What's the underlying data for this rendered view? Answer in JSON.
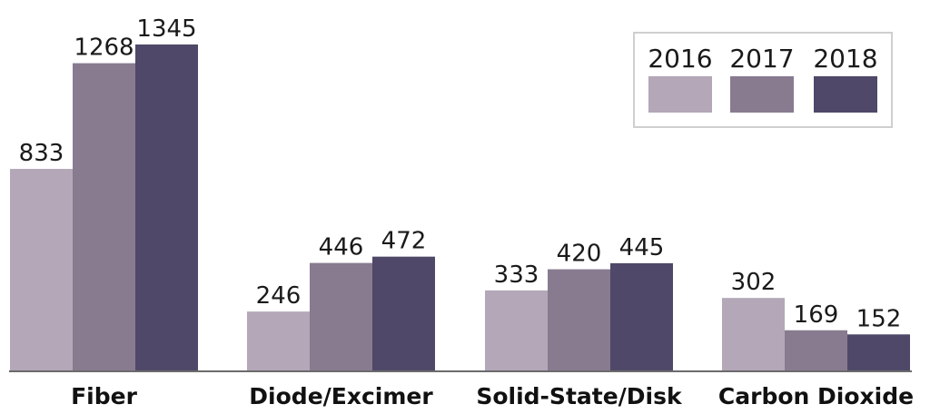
{
  "chart_data": {
    "type": "bar",
    "categories": [
      "Fiber",
      "Diode/Excimer",
      "Solid-State/Disk",
      "Carbon Dioxide"
    ],
    "series": [
      {
        "name": "2016",
        "values": [
          833,
          246,
          333,
          302
        ],
        "color": "#b3a7b8"
      },
      {
        "name": "2017",
        "values": [
          1268,
          446,
          420,
          169
        ],
        "color": "#887b90"
      },
      {
        "name": "2018",
        "values": [
          1345,
          472,
          445,
          152
        ],
        "color": "#4f4868"
      }
    ],
    "title": "",
    "xlabel": "",
    "ylabel": "",
    "ylim": [
      0,
      1345
    ],
    "grid": false,
    "legend": "top-right",
    "data_labels": true
  }
}
